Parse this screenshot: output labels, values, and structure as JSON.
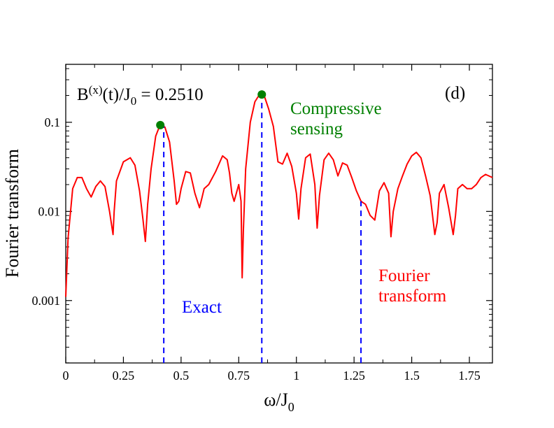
{
  "chart_data": {
    "type": "line",
    "panel_label": "(d)",
    "field_label": {
      "base": "B",
      "sup": "(x)",
      "mid": "(t)/J",
      "sub": "0",
      "value": " = 0.2510"
    },
    "xlabel": {
      "main": "ω/J",
      "sub": "0"
    },
    "ylabel": "Fourier transform",
    "xlim": [
      0,
      1.85
    ],
    "ylim_log10": [
      -3.7,
      -0.35
    ],
    "xticks": [
      0,
      0.25,
      0.5,
      0.75,
      1,
      1.25,
      1.5,
      1.75
    ],
    "xtick_labels": [
      "0",
      "0.25",
      "0.5",
      "0.75",
      "1",
      "1.25",
      "1.5",
      "1.75"
    ],
    "yticks": [
      0.1,
      0.01,
      0.001
    ],
    "ytick_labels": [
      "0.1",
      "0.01",
      "0.001"
    ],
    "colors": {
      "fourier": "#ff0000",
      "exact": "#0000ff",
      "compressive": "#008000",
      "axis": "#000000"
    },
    "series": [
      {
        "name": "Fourier transform",
        "label_lines": [
          "Fourier",
          "transform"
        ],
        "style": "solid",
        "x": [
          0.0,
          0.01,
          0.03,
          0.05,
          0.07,
          0.09,
          0.11,
          0.13,
          0.15,
          0.17,
          0.19,
          0.205,
          0.21,
          0.22,
          0.25,
          0.28,
          0.3,
          0.32,
          0.335,
          0.345,
          0.355,
          0.37,
          0.39,
          0.41,
          0.43,
          0.45,
          0.47,
          0.48,
          0.49,
          0.5,
          0.52,
          0.54,
          0.56,
          0.58,
          0.59,
          0.6,
          0.62,
          0.65,
          0.68,
          0.7,
          0.71,
          0.72,
          0.73,
          0.75,
          0.76,
          0.765,
          0.77,
          0.78,
          0.8,
          0.82,
          0.84,
          0.85,
          0.86,
          0.88,
          0.9,
          0.92,
          0.94,
          0.96,
          0.98,
          1.0,
          1.01,
          1.02,
          1.04,
          1.06,
          1.08,
          1.09,
          1.1,
          1.12,
          1.14,
          1.16,
          1.18,
          1.2,
          1.22,
          1.24,
          1.26,
          1.28,
          1.3,
          1.32,
          1.34,
          1.36,
          1.38,
          1.4,
          1.41,
          1.42,
          1.44,
          1.46,
          1.48,
          1.5,
          1.52,
          1.54,
          1.56,
          1.58,
          1.6,
          1.61,
          1.62,
          1.64,
          1.66,
          1.68,
          1.69,
          1.7,
          1.72,
          1.74,
          1.76,
          1.78,
          1.8,
          1.82,
          1.85
        ],
        "y": [
          0.0011,
          0.005,
          0.018,
          0.024,
          0.024,
          0.018,
          0.0145,
          0.019,
          0.022,
          0.019,
          0.01,
          0.0055,
          0.01,
          0.022,
          0.036,
          0.04,
          0.033,
          0.017,
          0.008,
          0.0046,
          0.012,
          0.03,
          0.07,
          0.095,
          0.088,
          0.06,
          0.022,
          0.012,
          0.013,
          0.018,
          0.028,
          0.027,
          0.016,
          0.011,
          0.014,
          0.018,
          0.02,
          0.028,
          0.042,
          0.038,
          0.027,
          0.016,
          0.013,
          0.02,
          0.013,
          0.0018,
          0.006,
          0.03,
          0.1,
          0.17,
          0.205,
          0.21,
          0.2,
          0.14,
          0.09,
          0.036,
          0.034,
          0.045,
          0.032,
          0.016,
          0.0082,
          0.018,
          0.04,
          0.044,
          0.02,
          0.0065,
          0.015,
          0.038,
          0.045,
          0.038,
          0.025,
          0.035,
          0.033,
          0.024,
          0.017,
          0.013,
          0.012,
          0.009,
          0.008,
          0.017,
          0.021,
          0.016,
          0.0052,
          0.01,
          0.018,
          0.025,
          0.034,
          0.042,
          0.046,
          0.04,
          0.025,
          0.015,
          0.0055,
          0.0075,
          0.016,
          0.02,
          0.011,
          0.0055,
          0.009,
          0.018,
          0.02,
          0.018,
          0.018,
          0.02,
          0.024,
          0.026,
          0.024
        ]
      },
      {
        "name": "Exact",
        "label_lines": [
          "Exact"
        ],
        "style": "dashed-vertical",
        "x": [
          0.425,
          0.85,
          1.28
        ],
        "y": [
          0.093,
          0.205,
          0.013
        ]
      },
      {
        "name": "Compressive sensing",
        "label_lines": [
          "Compressive",
          "sensing"
        ],
        "style": "markers",
        "x": [
          0.41,
          0.85
        ],
        "y": [
          0.093,
          0.205
        ]
      }
    ]
  }
}
